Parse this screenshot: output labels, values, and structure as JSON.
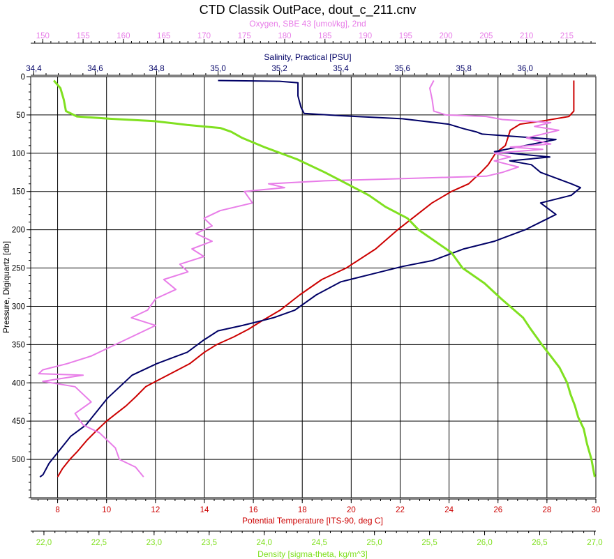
{
  "chart_data": {
    "type": "line",
    "title": "CTD Classik OutPace, dout_c_211.cnv",
    "grid": true,
    "y_axis": {
      "label": "Pressure, Digiquartz [db]",
      "range": [
        550,
        0
      ],
      "ticks": [
        "0",
        "50",
        "100",
        "150",
        "200",
        "250",
        "300",
        "350",
        "400",
        "450",
        "500"
      ],
      "tick_values": [
        0,
        50,
        100,
        150,
        200,
        250,
        300,
        350,
        400,
        450,
        500
      ]
    },
    "x_axes": [
      {
        "id": "oxygen",
        "label": "Oxygen, SBE 43 [umol/kg], 2nd",
        "position": "top-1",
        "color": "#e87de8",
        "range": [
          148.5,
          218.6
        ],
        "ticks": [
          "150",
          "155",
          "160",
          "165",
          "170",
          "175",
          "180",
          "185",
          "190",
          "195",
          "200",
          "205",
          "210",
          "215"
        ],
        "tick_values": [
          150,
          155,
          160,
          165,
          170,
          175,
          180,
          185,
          190,
          195,
          200,
          205,
          210,
          215
        ]
      },
      {
        "id": "salinity",
        "label": "Salinity, Practical [PSU]",
        "position": "top-2",
        "color": "#000066",
        "range": [
          34.39,
          36.23
        ],
        "ticks": [
          "34,4",
          "34,6",
          "34,8",
          "35,0",
          "35,2",
          "35,4",
          "35,6",
          "35,8",
          "36,0"
        ],
        "tick_values": [
          34.4,
          34.6,
          34.8,
          35.0,
          35.2,
          35.4,
          35.6,
          35.8,
          36.0
        ]
      },
      {
        "id": "temperature",
        "label": "Potential Temperature [ITS-90, deg C]",
        "position": "bottom-1",
        "color": "#cc0000",
        "range": [
          6.9,
          30.0
        ],
        "ticks": [
          "8",
          "10",
          "12",
          "14",
          "16",
          "18",
          "20",
          "22",
          "24",
          "26",
          "28",
          "30"
        ],
        "tick_values": [
          8,
          10,
          12,
          14,
          16,
          18,
          20,
          22,
          24,
          26,
          28,
          30
        ]
      },
      {
        "id": "density",
        "label": "Density [sigma-theta, kg/m^3]",
        "position": "bottom-2",
        "color": "#80e020",
        "range": [
          21.88,
          27.01
        ],
        "ticks": [
          "22,0",
          "22,5",
          "23,0",
          "23,5",
          "24,0",
          "24,5",
          "25,0",
          "25,5",
          "26,0",
          "26,5",
          "27,0"
        ],
        "tick_values": [
          22.0,
          22.5,
          23.0,
          23.5,
          24.0,
          24.5,
          25.0,
          25.5,
          26.0,
          26.5,
          27.0
        ]
      }
    ],
    "series": [
      {
        "axis": "temperature",
        "color": "#cc0000",
        "points": [
          [
            29.1,
            5
          ],
          [
            29.1,
            20
          ],
          [
            29.1,
            45
          ],
          [
            28.9,
            52
          ],
          [
            27.8,
            58
          ],
          [
            26.9,
            62
          ],
          [
            26.5,
            70
          ],
          [
            26.4,
            80
          ],
          [
            26.3,
            90
          ],
          [
            25.9,
            100
          ],
          [
            25.6,
            115
          ],
          [
            25.3,
            125
          ],
          [
            24.8,
            140
          ],
          [
            24.1,
            150
          ],
          [
            23.3,
            165
          ],
          [
            22.5,
            185
          ],
          [
            21.9,
            200
          ],
          [
            21.0,
            225
          ],
          [
            19.8,
            250
          ],
          [
            18.8,
            265
          ],
          [
            17.9,
            285
          ],
          [
            17.1,
            305
          ],
          [
            16.3,
            320
          ],
          [
            15.8,
            330
          ],
          [
            15.2,
            340
          ],
          [
            14.5,
            350
          ],
          [
            14.0,
            360
          ],
          [
            13.4,
            375
          ],
          [
            12.8,
            385
          ],
          [
            12.2,
            395
          ],
          [
            11.6,
            405
          ],
          [
            11.2,
            418
          ],
          [
            10.8,
            430
          ],
          [
            10.4,
            440
          ],
          [
            10.0,
            450
          ],
          [
            9.6,
            462
          ],
          [
            9.2,
            475
          ],
          [
            8.8,
            490
          ],
          [
            8.5,
            500
          ],
          [
            8.2,
            512
          ],
          [
            8.0,
            523
          ]
        ]
      },
      {
        "axis": "salinity",
        "color": "#000066",
        "points": [
          [
            35.0,
            5
          ],
          [
            35.2,
            6
          ],
          [
            35.26,
            8
          ],
          [
            35.26,
            25
          ],
          [
            35.27,
            40
          ],
          [
            35.28,
            48
          ],
          [
            35.4,
            51
          ],
          [
            35.6,
            55
          ],
          [
            35.75,
            62
          ],
          [
            35.8,
            68
          ],
          [
            35.84,
            72
          ],
          [
            35.86,
            75
          ],
          [
            36.1,
            82
          ],
          [
            36.0,
            90
          ],
          [
            35.9,
            98
          ],
          [
            35.95,
            100
          ],
          [
            36.08,
            105
          ],
          [
            35.95,
            110
          ],
          [
            36.02,
            115
          ],
          [
            36.05,
            125
          ],
          [
            36.15,
            140
          ],
          [
            36.18,
            145
          ],
          [
            36.15,
            155
          ],
          [
            36.05,
            165
          ],
          [
            36.1,
            180
          ],
          [
            36.05,
            190
          ],
          [
            36.0,
            200
          ],
          [
            35.9,
            215
          ],
          [
            35.8,
            225
          ],
          [
            35.7,
            240
          ],
          [
            35.6,
            248
          ],
          [
            35.5,
            258
          ],
          [
            35.4,
            268
          ],
          [
            35.32,
            285
          ],
          [
            35.25,
            305
          ],
          [
            35.18,
            315
          ],
          [
            35.08,
            325
          ],
          [
            35.0,
            332
          ],
          [
            34.95,
            345
          ],
          [
            34.9,
            360
          ],
          [
            34.8,
            375
          ],
          [
            34.72,
            390
          ],
          [
            34.68,
            405
          ],
          [
            34.64,
            420
          ],
          [
            34.6,
            440
          ],
          [
            34.57,
            455
          ],
          [
            34.52,
            470
          ],
          [
            34.48,
            490
          ],
          [
            34.45,
            505
          ],
          [
            34.43,
            520
          ],
          [
            34.42,
            523
          ]
        ]
      },
      {
        "axis": "oxygen",
        "color": "#e87de8",
        "points": [
          [
            198.5,
            5
          ],
          [
            198.0,
            15
          ],
          [
            198.3,
            30
          ],
          [
            198.5,
            45
          ],
          [
            200.0,
            50
          ],
          [
            205.0,
            52
          ],
          [
            207.0,
            56
          ],
          [
            213.0,
            60
          ],
          [
            211.0,
            65
          ],
          [
            214.0,
            70
          ],
          [
            210.0,
            80
          ],
          [
            213.0,
            88
          ],
          [
            208.0,
            92
          ],
          [
            212.0,
            95
          ],
          [
            206.0,
            100
          ],
          [
            208.0,
            105
          ],
          [
            206.0,
            110
          ],
          [
            209.0,
            118
          ],
          [
            207.0,
            125
          ],
          [
            205.0,
            130
          ],
          [
            195.0,
            133
          ],
          [
            185.0,
            136
          ],
          [
            178.0,
            140
          ],
          [
            180.0,
            145
          ],
          [
            175.0,
            150
          ],
          [
            176.0,
            165
          ],
          [
            172.0,
            175
          ],
          [
            170.0,
            185
          ],
          [
            171.0,
            195
          ],
          [
            169.0,
            205
          ],
          [
            171.0,
            215
          ],
          [
            168.5,
            225
          ],
          [
            170.0,
            235
          ],
          [
            167.0,
            245
          ],
          [
            168.0,
            255
          ],
          [
            165.0,
            265
          ],
          [
            166.5,
            278
          ],
          [
            164.0,
            290
          ],
          [
            163.0,
            305
          ],
          [
            161.0,
            315
          ],
          [
            164.0,
            325
          ],
          [
            162.0,
            335
          ],
          [
            159.0,
            350
          ],
          [
            156.0,
            365
          ],
          [
            153.0,
            375
          ],
          [
            150.0,
            383
          ],
          [
            149.5,
            388
          ],
          [
            155.0,
            390
          ],
          [
            150.0,
            398
          ],
          [
            154.0,
            405
          ],
          [
            155.0,
            415
          ],
          [
            156.0,
            425
          ],
          [
            154.0,
            440
          ],
          [
            155.0,
            455
          ],
          [
            157.0,
            465
          ],
          [
            158.0,
            475
          ],
          [
            159.0,
            485
          ],
          [
            159.5,
            500
          ],
          [
            161.5,
            510
          ],
          [
            162.5,
            523
          ]
        ]
      },
      {
        "axis": "density",
        "color": "#80e020",
        "points": [
          [
            22.09,
            5
          ],
          [
            22.15,
            15
          ],
          [
            22.18,
            30
          ],
          [
            22.2,
            45
          ],
          [
            22.3,
            52
          ],
          [
            22.6,
            55
          ],
          [
            23.0,
            58
          ],
          [
            23.3,
            63
          ],
          [
            23.6,
            67
          ],
          [
            23.7,
            72
          ],
          [
            23.8,
            80
          ],
          [
            24.0,
            92
          ],
          [
            24.3,
            108
          ],
          [
            24.55,
            125
          ],
          [
            24.75,
            140
          ],
          [
            24.95,
            155
          ],
          [
            25.1,
            170
          ],
          [
            25.3,
            185
          ],
          [
            25.4,
            200
          ],
          [
            25.55,
            215
          ],
          [
            25.7,
            230
          ],
          [
            25.8,
            250
          ],
          [
            26.0,
            270
          ],
          [
            26.15,
            290
          ],
          [
            26.35,
            315
          ],
          [
            26.42,
            330
          ],
          [
            26.52,
            350
          ],
          [
            26.6,
            365
          ],
          [
            26.68,
            380
          ],
          [
            26.75,
            400
          ],
          [
            26.78,
            415
          ],
          [
            26.82,
            430
          ],
          [
            26.85,
            445
          ],
          [
            26.9,
            460
          ],
          [
            26.93,
            480
          ],
          [
            26.97,
            500
          ],
          [
            27.0,
            523
          ]
        ]
      }
    ]
  }
}
